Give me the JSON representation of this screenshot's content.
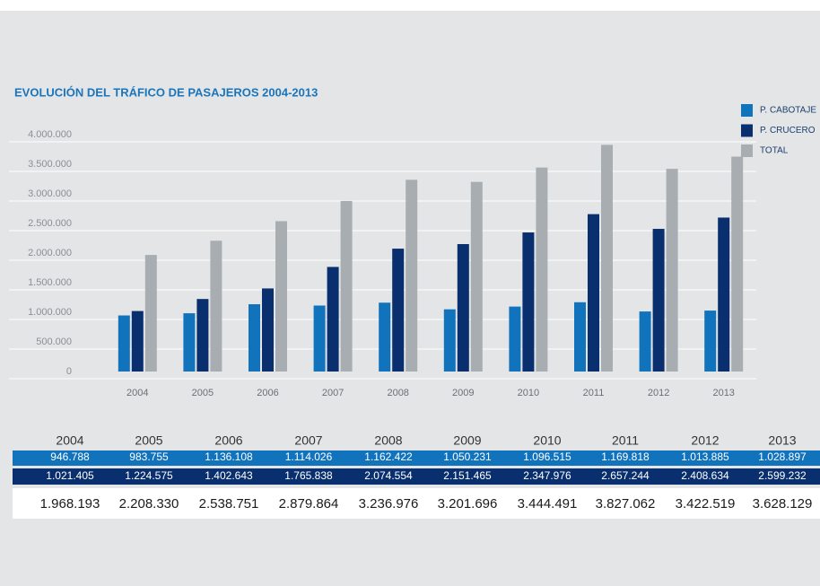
{
  "chart_data": {
    "type": "bar",
    "title": "EVOLUCIÓN DEL TRÁFICO DE PASAJEROS 2004-2013",
    "categories": [
      "2004",
      "2005",
      "2006",
      "2007",
      "2008",
      "2009",
      "2010",
      "2011",
      "2012",
      "2013"
    ],
    "series": [
      {
        "name": "P. CABOTAJE",
        "color": "#1273bd",
        "values": [
          946788,
          983755,
          1136108,
          1114026,
          1162422,
          1050231,
          1096515,
          1169818,
          1013885,
          1028897
        ],
        "value_labels": [
          "946.788",
          "983.755",
          "1.136.108",
          "1.114.026",
          "1.162.422",
          "1.050.231",
          "1.096.515",
          "1.169.818",
          "1.013.885",
          "1.028.897"
        ]
      },
      {
        "name": "P. CRUCERO",
        "color": "#0a2f6e",
        "values": [
          1021405,
          1224575,
          1402643,
          1765838,
          2074554,
          2151465,
          2347976,
          2657244,
          2408634,
          2599232
        ],
        "value_labels": [
          "1.021.405",
          "1.224.575",
          "1.402.643",
          "1.765.838",
          "2.074.554",
          "2.151.465",
          "2.347.976",
          "2.657.244",
          "2.408.634",
          "2.599.232"
        ]
      },
      {
        "name": "TOTAL",
        "color": "#a8adb2",
        "values": [
          1968193,
          2208330,
          2538751,
          2879864,
          3236976,
          3201696,
          3444491,
          3827062,
          3422519,
          3628129
        ],
        "value_labels": [
          "1.968.193",
          "2.208.330",
          "2.538.751",
          "2.879.864",
          "3.236.976",
          "3.201.696",
          "3.444.491",
          "3.827.062",
          "3.422.519",
          "3.628.129"
        ]
      }
    ],
    "ylim": [
      0,
      4000000
    ],
    "yticks": [
      0,
      {
        "value": 500000,
        "label": "500.000"
      },
      {
        "value": 1000000,
        "label": "1.000.000"
      },
      {
        "value": 1500000,
        "label": "1.500.000"
      },
      {
        "value": 2000000,
        "label": "2.000.000"
      },
      {
        "value": 2500000,
        "label": "2.500.000"
      },
      {
        "value": 3000000,
        "label": "3.000.000"
      },
      {
        "value": 3500000,
        "label": "3.500.000"
      },
      {
        "value": 4000000,
        "label": "4.000.000"
      }
    ],
    "grid": true,
    "legend": "top-right"
  }
}
